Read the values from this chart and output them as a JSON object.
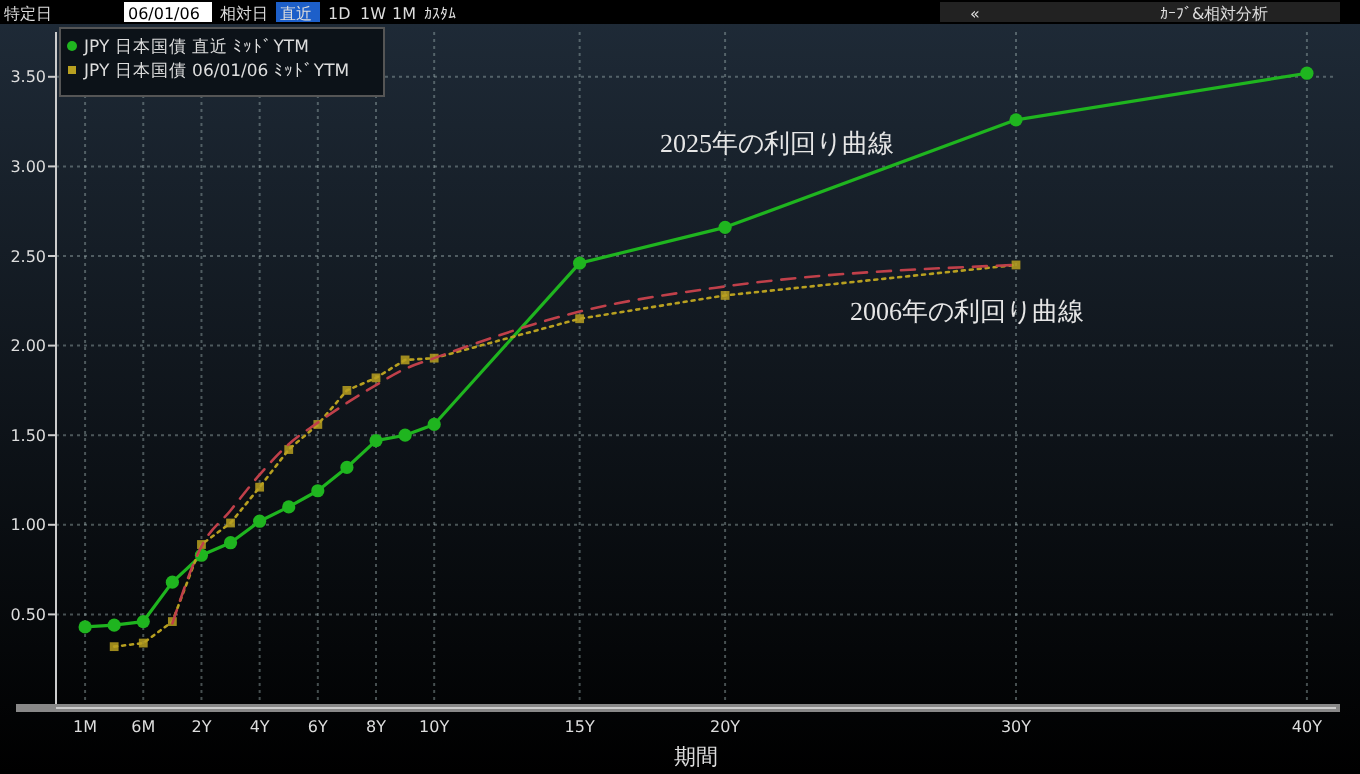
{
  "chart_data": {
    "type": "line",
    "xlabel": "期間",
    "annotations": [
      "2025年の利回り曲線",
      "2006年の利回り曲線",
      "特定日",
      "06/01/06",
      "相対日",
      "直近",
      "1D",
      "1W",
      "1M",
      "ｶｽﾀﾑ",
      "«",
      "ｶｰﾌﾞ&相対分析"
    ],
    "categories": [
      "1M",
      null,
      "6M",
      null,
      "2Y",
      null,
      "4Y",
      null,
      "6Y",
      null,
      "8Y",
      null,
      "10Y",
      null,
      null,
      null,
      null,
      "15Y",
      null,
      null,
      null,
      null,
      "20Y",
      null,
      null,
      null,
      null,
      null,
      null,
      null,
      null,
      null,
      "30Y",
      null,
      null,
      null,
      null,
      null,
      null,
      null,
      null,
      null,
      "40Y"
    ],
    "ylim": [
      0,
      3.75
    ],
    "yticks": [
      {
        "value": 0.5,
        "label": "0.50"
      },
      {
        "value": 1,
        "label": "1.00"
      },
      {
        "value": 1.5,
        "label": "1.50"
      },
      {
        "value": 2,
        "label": "2.00"
      },
      {
        "value": 2.5,
        "label": "2.50"
      },
      {
        "value": 3,
        "label": "3.00"
      },
      {
        "value": 3.5,
        "label": "3.50"
      }
    ],
    "grid": true,
    "legend": "top left",
    "series": [
      {
        "name": "JPY 日本国債 直近 ﾐｯﾄﾞYTM",
        "color": "#1fb51f",
        "marker": "circle",
        "line_style": "solid",
        "values": [
          0.43,
          0.44,
          0.46,
          0.68,
          0.83,
          0.9,
          1.02,
          1.1,
          1.19,
          1.32,
          1.47,
          1.5,
          1.56,
          null,
          null,
          null,
          null,
          2.46,
          null,
          null,
          null,
          null,
          2.66,
          null,
          null,
          null,
          null,
          null,
          null,
          null,
          null,
          null,
          3.26,
          null,
          null,
          null,
          null,
          null,
          null,
          null,
          null,
          null,
          3.52
        ]
      },
      {
        "name": "JPY 日本国債 06/01/06 ﾐｯﾄﾞYTM",
        "color": "#b8a020",
        "marker": "square",
        "line_style": "dotted",
        "values": [
          null,
          0.32,
          0.34,
          0.46,
          0.89,
          1.01,
          1.21,
          1.42,
          1.56,
          1.75,
          1.82,
          1.92,
          1.93,
          null,
          null,
          null,
          null,
          2.15,
          null,
          null,
          null,
          null,
          2.28,
          null,
          null,
          null,
          null,
          null,
          null,
          null,
          null,
          null,
          2.45,
          null,
          null,
          null,
          null,
          null,
          null,
          null,
          null,
          null,
          null
        ]
      },
      {
        "color": "#c0404a",
        "marker": "none",
        "line_style": "dashed",
        "values": [
          null,
          null,
          null,
          0.45,
          0.88,
          1.08,
          1.28,
          1.45,
          1.57,
          1.68,
          1.78,
          1.87,
          1.93,
          null,
          null,
          null,
          null,
          2.19,
          null,
          null,
          null,
          null,
          2.33,
          null,
          null,
          null,
          null,
          null,
          null,
          null,
          null,
          null,
          2.45,
          null,
          null,
          null,
          null,
          null,
          null,
          null,
          null,
          null,
          null
        ]
      }
    ]
  }
}
